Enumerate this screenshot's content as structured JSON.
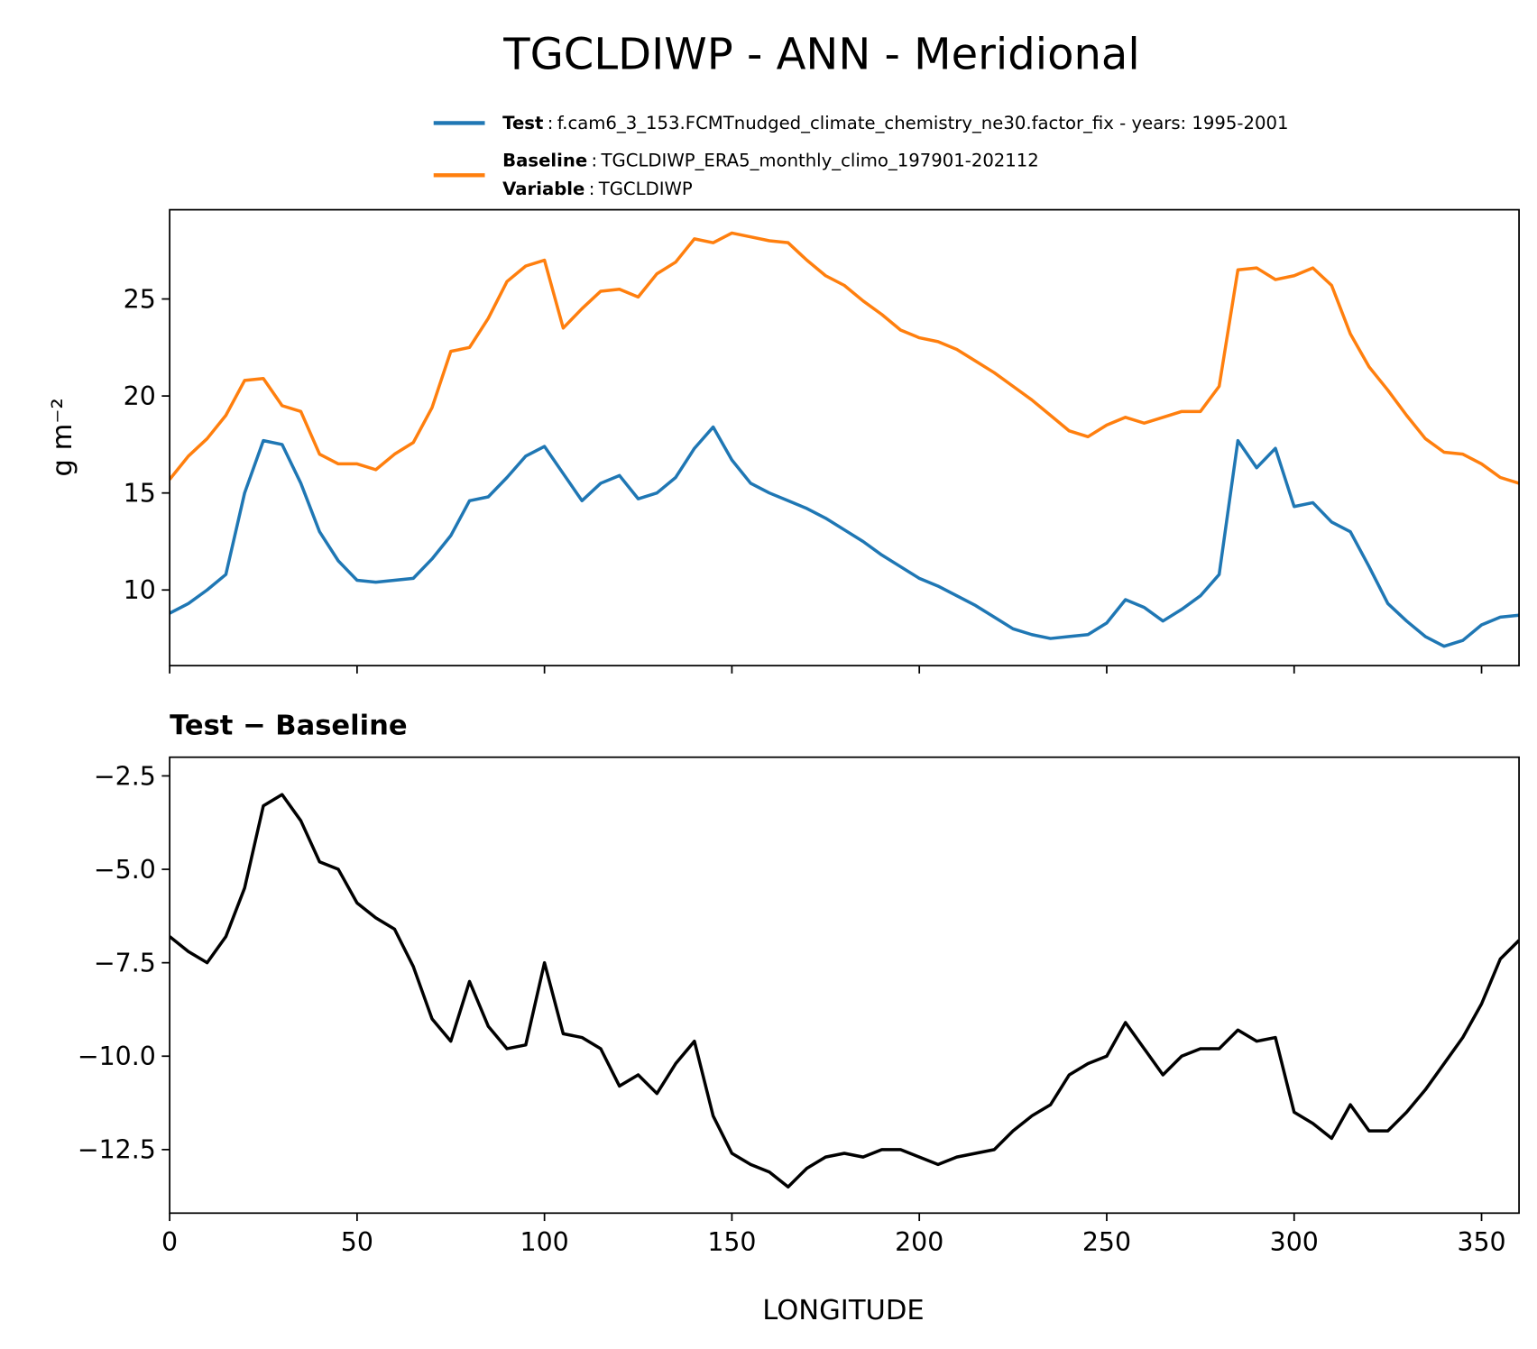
{
  "chart_data": [
    {
      "type": "line",
      "title": "TGCLDIWP - ANN - Meridional",
      "ylabel": "g m⁻²",
      "separator": ":",
      "legend_extra": {
        "name": "Variable",
        "text": "TGCLDIWP"
      },
      "x": [
        0,
        5,
        10,
        15,
        20,
        25,
        30,
        35,
        40,
        45,
        50,
        55,
        60,
        65,
        70,
        75,
        80,
        85,
        90,
        95,
        100,
        105,
        110,
        115,
        120,
        125,
        130,
        135,
        140,
        145,
        150,
        155,
        160,
        165,
        170,
        175,
        180,
        185,
        190,
        195,
        200,
        205,
        210,
        215,
        220,
        225,
        230,
        235,
        240,
        245,
        250,
        255,
        260,
        265,
        270,
        275,
        280,
        285,
        290,
        295,
        300,
        305,
        310,
        315,
        320,
        325,
        330,
        335,
        340,
        345,
        350,
        355,
        360
      ],
      "xlim": [
        0,
        360
      ],
      "xticks": [
        0,
        50,
        100,
        150,
        200,
        250,
        300,
        350
      ],
      "ylim": [
        6.1,
        29.6
      ],
      "yticks": [
        10,
        15,
        20,
        25
      ],
      "series": [
        {
          "name": "Test",
          "description": "f.cam6_3_153.FCMTnudged_climate_chemistry_ne30.factor_fix - years: 1995-2001",
          "color": "#1f77b4",
          "values": [
            8.8,
            9.3,
            10.0,
            10.8,
            15.0,
            17.7,
            17.5,
            15.5,
            13.0,
            11.5,
            10.5,
            10.4,
            10.5,
            10.6,
            11.6,
            12.8,
            14.6,
            14.8,
            15.8,
            16.9,
            17.4,
            16.0,
            14.6,
            15.5,
            15.9,
            14.7,
            15.0,
            15.8,
            17.3,
            18.4,
            16.7,
            15.5,
            15.0,
            14.6,
            14.2,
            13.7,
            13.1,
            12.5,
            11.8,
            11.2,
            10.6,
            10.2,
            9.7,
            9.2,
            8.6,
            8.0,
            7.7,
            7.5,
            7.6,
            7.7,
            8.3,
            9.5,
            9.1,
            8.4,
            9.0,
            9.7,
            10.8,
            17.7,
            16.3,
            17.3,
            14.3,
            14.5,
            13.5,
            13.0,
            11.2,
            9.3,
            8.4,
            7.6,
            7.1,
            7.4,
            8.2,
            8.6,
            8.7
          ]
        },
        {
          "name": "Baseline",
          "description": "TGCLDIWP_ERA5_monthly_climo_197901-202112",
          "color": "#ff7f0e",
          "values": [
            15.7,
            16.9,
            17.8,
            19.0,
            20.8,
            20.9,
            19.5,
            19.2,
            17.0,
            16.5,
            16.5,
            16.2,
            17.0,
            17.6,
            19.4,
            22.3,
            22.5,
            24.0,
            25.9,
            26.7,
            27.0,
            23.5,
            24.5,
            25.4,
            25.5,
            25.1,
            26.3,
            26.9,
            28.1,
            27.9,
            28.4,
            28.2,
            28.0,
            27.9,
            27.0,
            26.2,
            25.7,
            24.9,
            24.2,
            23.4,
            23.0,
            22.8,
            22.4,
            21.8,
            21.2,
            20.5,
            19.8,
            19.0,
            18.2,
            17.9,
            18.5,
            18.9,
            18.6,
            18.9,
            19.2,
            19.2,
            20.5,
            26.5,
            26.6,
            26.0,
            26.2,
            26.6,
            25.7,
            23.2,
            21.5,
            20.3,
            19.0,
            17.8,
            17.1,
            17.0,
            16.5,
            15.8,
            15.5
          ]
        }
      ]
    },
    {
      "type": "line",
      "title": "Test − Baseline",
      "xlabel": "LONGITUDE",
      "x": [
        0,
        5,
        10,
        15,
        20,
        25,
        30,
        35,
        40,
        45,
        50,
        55,
        60,
        65,
        70,
        75,
        80,
        85,
        90,
        95,
        100,
        105,
        110,
        115,
        120,
        125,
        130,
        135,
        140,
        145,
        150,
        155,
        160,
        165,
        170,
        175,
        180,
        185,
        190,
        195,
        200,
        205,
        210,
        215,
        220,
        225,
        230,
        235,
        240,
        245,
        250,
        255,
        260,
        265,
        270,
        275,
        280,
        285,
        290,
        295,
        300,
        305,
        310,
        315,
        320,
        325,
        330,
        335,
        340,
        345,
        350,
        355,
        360
      ],
      "xlim": [
        0,
        360
      ],
      "xticks": [
        0,
        50,
        100,
        150,
        200,
        250,
        300,
        350
      ],
      "ylim": [
        -14.2,
        -2.0
      ],
      "yticks": [
        {
          "value": -2.5,
          "label": "−2.5"
        },
        {
          "value": -5.0,
          "label": "−5.0"
        },
        {
          "value": -7.5,
          "label": "−7.5"
        },
        {
          "value": -10.0,
          "label": "−10.0"
        },
        {
          "value": -12.5,
          "label": "−12.5"
        }
      ],
      "series": [
        {
          "color": "#000000",
          "values": [
            -6.8,
            -7.2,
            -7.5,
            -6.8,
            -5.5,
            -3.3,
            -3.0,
            -3.7,
            -4.8,
            -5.0,
            -5.9,
            -6.3,
            -6.6,
            -7.6,
            -9.0,
            -9.6,
            -8.0,
            -9.2,
            -9.8,
            -9.7,
            -7.5,
            -9.4,
            -9.5,
            -9.8,
            -10.8,
            -10.5,
            -11.0,
            -10.2,
            -9.6,
            -11.6,
            -12.6,
            -12.9,
            -13.1,
            -13.5,
            -13.0,
            -12.7,
            -12.6,
            -12.7,
            -12.5,
            -12.5,
            -12.7,
            -12.9,
            -12.7,
            -12.6,
            -12.5,
            -12.0,
            -11.6,
            -11.3,
            -10.5,
            -10.2,
            -10.0,
            -9.1,
            -9.8,
            -10.5,
            -10.0,
            -9.8,
            -9.8,
            -9.3,
            -9.6,
            -9.5,
            -11.5,
            -11.8,
            -12.2,
            -11.3,
            -12.0,
            -12.0,
            -11.5,
            -10.9,
            -10.2,
            -9.5,
            -8.6,
            -7.4,
            -6.9
          ]
        }
      ]
    }
  ]
}
